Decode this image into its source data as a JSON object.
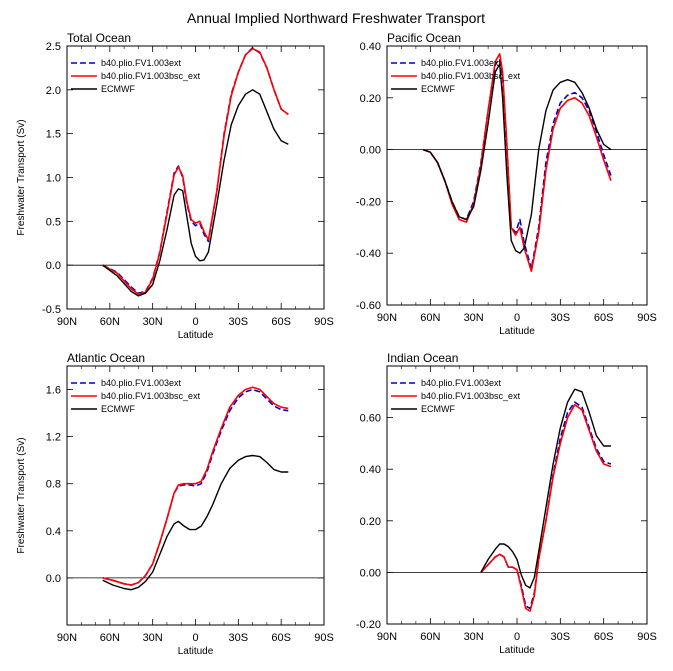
{
  "title": "Annual Implied Northward Freshwater Transport",
  "legend_labels": [
    "b40.plio.FV1.003ext",
    "b40.plio.FV1.003bsc_ext",
    "ECMWF"
  ],
  "colors": {
    "series1": "#0000cc",
    "series2": "#ff0000",
    "series3": "#000000",
    "zero_line": "#000000"
  },
  "chart_data": [
    {
      "type": "line",
      "title": "Total Ocean",
      "xlabel": "Latitude",
      "ylabel": "Freshwater Transport (Sv)",
      "xlim": [
        -90,
        90
      ],
      "x_ticks": [
        -90,
        -60,
        -30,
        0,
        30,
        60,
        90
      ],
      "x_tick_labels": [
        "90N",
        "60N",
        "30N",
        "0",
        "30S",
        "60S",
        "90S"
      ],
      "ylim": [
        -0.5,
        2.5
      ],
      "y_ticks": [
        -0.5,
        0.0,
        0.5,
        1.0,
        1.5,
        2.0,
        2.5
      ],
      "y_tick_labels": [
        "-0.5",
        "0.0",
        "0.5",
        "1.0",
        "1.5",
        "2.0",
        "2.5"
      ],
      "legend_position": "top-left",
      "series": [
        {
          "name": "b40.plio.FV1.003ext",
          "style": "dashed",
          "x": [
            -65,
            -55,
            -45,
            -40,
            -35,
            -30,
            -25,
            -20,
            -15,
            -12,
            -9,
            -6,
            -3,
            0,
            3,
            6,
            9,
            15,
            20,
            25,
            30,
            35,
            40,
            45,
            50,
            55,
            60,
            65
          ],
          "y": [
            0.0,
            -0.08,
            -0.25,
            -0.32,
            -0.3,
            -0.15,
            0.15,
            0.6,
            1.05,
            1.13,
            1.0,
            0.7,
            0.5,
            0.45,
            0.48,
            0.35,
            0.27,
            0.85,
            1.5,
            1.95,
            2.2,
            2.4,
            2.48,
            2.42,
            2.25,
            2.0,
            1.78,
            1.72
          ]
        },
        {
          "name": "b40.plio.FV1.003bsc_ext",
          "style": "solid",
          "x": [
            -65,
            -55,
            -45,
            -40,
            -35,
            -30,
            -25,
            -20,
            -15,
            -12,
            -9,
            -6,
            -3,
            0,
            3,
            6,
            9,
            15,
            20,
            25,
            30,
            35,
            40,
            45,
            50,
            55,
            60,
            65
          ],
          "y": [
            0.0,
            -0.09,
            -0.27,
            -0.33,
            -0.31,
            -0.16,
            0.14,
            0.58,
            1.03,
            1.12,
            1.02,
            0.72,
            0.52,
            0.48,
            0.5,
            0.38,
            0.29,
            0.85,
            1.48,
            1.93,
            2.2,
            2.4,
            2.47,
            2.43,
            2.25,
            2.0,
            1.78,
            1.72
          ]
        },
        {
          "name": "ECMWF",
          "style": "solid",
          "x": [
            -65,
            -55,
            -45,
            -40,
            -35,
            -30,
            -25,
            -20,
            -15,
            -12,
            -9,
            -6,
            -3,
            0,
            3,
            6,
            9,
            15,
            20,
            25,
            30,
            35,
            40,
            45,
            50,
            55,
            60,
            65
          ],
          "y": [
            0.0,
            -0.12,
            -0.3,
            -0.35,
            -0.32,
            -0.22,
            0.05,
            0.4,
            0.8,
            0.87,
            0.85,
            0.55,
            0.25,
            0.1,
            0.05,
            0.06,
            0.15,
            0.7,
            1.2,
            1.6,
            1.82,
            1.95,
            2.0,
            1.95,
            1.75,
            1.55,
            1.42,
            1.38
          ]
        }
      ]
    },
    {
      "type": "line",
      "title": "Pacific Ocean",
      "xlabel": "Latitude",
      "ylabel": "",
      "xlim": [
        -90,
        90
      ],
      "x_ticks": [
        -90,
        -60,
        -30,
        0,
        30,
        60,
        90
      ],
      "x_tick_labels": [
        "90N",
        "60N",
        "30N",
        "0",
        "30S",
        "60S",
        "90S"
      ],
      "ylim": [
        -0.6,
        0.4
      ],
      "y_ticks": [
        -0.6,
        -0.4,
        -0.2,
        0.0,
        0.2,
        0.4
      ],
      "y_tick_labels": [
        "-0.60",
        "-0.40",
        "-0.20",
        "0.00",
        "0.20",
        "0.40"
      ],
      "legend_position": "top-left",
      "series": [
        {
          "name": "b40.plio.FV1.003ext",
          "style": "dashed",
          "x": [
            -65,
            -60,
            -55,
            -50,
            -45,
            -40,
            -35,
            -30,
            -25,
            -20,
            -15,
            -12,
            -10,
            -7,
            -4,
            -1,
            2,
            5,
            10,
            15,
            20,
            25,
            30,
            35,
            40,
            45,
            50,
            55,
            60,
            65
          ],
          "y": [
            0.0,
            -0.01,
            -0.05,
            -0.12,
            -0.2,
            -0.26,
            -0.27,
            -0.2,
            -0.05,
            0.15,
            0.33,
            0.35,
            0.28,
            0.0,
            -0.3,
            -0.32,
            -0.27,
            -0.36,
            -0.46,
            -0.3,
            -0.05,
            0.1,
            0.18,
            0.21,
            0.22,
            0.2,
            0.15,
            0.07,
            -0.02,
            -0.1
          ]
        },
        {
          "name": "b40.plio.FV1.003bsc_ext",
          "style": "solid",
          "x": [
            -65,
            -60,
            -55,
            -50,
            -45,
            -40,
            -35,
            -30,
            -25,
            -20,
            -15,
            -12,
            -10,
            -7,
            -4,
            -1,
            2,
            5,
            10,
            15,
            20,
            25,
            30,
            35,
            40,
            45,
            50,
            55,
            60,
            65
          ],
          "y": [
            0.0,
            -0.01,
            -0.05,
            -0.12,
            -0.21,
            -0.27,
            -0.28,
            -0.21,
            -0.06,
            0.15,
            0.34,
            0.37,
            0.3,
            0.02,
            -0.3,
            -0.33,
            -0.3,
            -0.38,
            -0.47,
            -0.32,
            -0.08,
            0.08,
            0.16,
            0.19,
            0.2,
            0.18,
            0.13,
            0.05,
            -0.04,
            -0.12
          ]
        },
        {
          "name": "ECMWF",
          "style": "solid",
          "x": [
            -65,
            -60,
            -55,
            -50,
            -45,
            -40,
            -35,
            -30,
            -25,
            -20,
            -15,
            -12,
            -10,
            -7,
            -4,
            -1,
            2,
            5,
            10,
            15,
            20,
            25,
            30,
            35,
            40,
            45,
            50,
            55,
            60,
            65
          ],
          "y": [
            0.0,
            -0.01,
            -0.05,
            -0.12,
            -0.2,
            -0.26,
            -0.27,
            -0.22,
            -0.08,
            0.1,
            0.3,
            0.33,
            0.2,
            -0.1,
            -0.35,
            -0.39,
            -0.4,
            -0.38,
            -0.25,
            0.0,
            0.15,
            0.23,
            0.26,
            0.27,
            0.26,
            0.22,
            0.16,
            0.08,
            0.02,
            0.0
          ]
        }
      ]
    },
    {
      "type": "line",
      "title": "Atlantic Ocean",
      "xlabel": "Latitude",
      "ylabel": "Freshwater Transport (Sv)",
      "xlim": [
        -90,
        90
      ],
      "x_ticks": [
        -90,
        -60,
        -30,
        0,
        30,
        60,
        90
      ],
      "x_tick_labels": [
        "90N",
        "60N",
        "30N",
        "0",
        "30S",
        "60S",
        "90S"
      ],
      "ylim": [
        -0.4,
        1.8
      ],
      "y_ticks": [
        0.0,
        0.4,
        0.8,
        1.2,
        1.6
      ],
      "y_tick_labels": [
        "0.0",
        "0.4",
        "0.8",
        "1.2",
        "1.6"
      ],
      "legend_position": "top-left",
      "series": [
        {
          "name": "b40.plio.FV1.003ext",
          "style": "dashed",
          "x": [
            -65,
            -58,
            -50,
            -45,
            -40,
            -35,
            -30,
            -25,
            -20,
            -15,
            -12,
            -8,
            -4,
            0,
            4,
            8,
            12,
            18,
            24,
            30,
            35,
            40,
            45,
            50,
            55,
            60,
            65
          ],
          "y": [
            0.0,
            -0.02,
            -0.05,
            -0.06,
            -0.04,
            0.02,
            0.12,
            0.3,
            0.5,
            0.72,
            0.78,
            0.79,
            0.79,
            0.78,
            0.8,
            0.9,
            1.05,
            1.25,
            1.42,
            1.53,
            1.58,
            1.6,
            1.58,
            1.52,
            1.46,
            1.43,
            1.42
          ]
        },
        {
          "name": "b40.plio.FV1.003bsc_ext",
          "style": "solid",
          "x": [
            -65,
            -58,
            -50,
            -45,
            -40,
            -35,
            -30,
            -25,
            -20,
            -15,
            -12,
            -8,
            -4,
            0,
            4,
            8,
            12,
            18,
            24,
            30,
            35,
            40,
            45,
            50,
            55,
            60,
            65
          ],
          "y": [
            0.0,
            -0.02,
            -0.05,
            -0.06,
            -0.04,
            0.02,
            0.12,
            0.3,
            0.5,
            0.72,
            0.79,
            0.8,
            0.8,
            0.8,
            0.82,
            0.92,
            1.07,
            1.27,
            1.45,
            1.55,
            1.6,
            1.62,
            1.6,
            1.54,
            1.48,
            1.45,
            1.44
          ]
        },
        {
          "name": "ECMWF",
          "style": "solid",
          "x": [
            -65,
            -58,
            -50,
            -45,
            -40,
            -35,
            -30,
            -25,
            -20,
            -15,
            -12,
            -8,
            -4,
            0,
            4,
            8,
            12,
            18,
            24,
            30,
            35,
            40,
            45,
            50,
            55,
            60,
            65
          ],
          "y": [
            -0.02,
            -0.06,
            -0.09,
            -0.1,
            -0.08,
            -0.03,
            0.05,
            0.2,
            0.35,
            0.46,
            0.48,
            0.44,
            0.41,
            0.41,
            0.44,
            0.52,
            0.62,
            0.8,
            0.93,
            1.0,
            1.03,
            1.04,
            1.03,
            0.98,
            0.92,
            0.9,
            0.9
          ]
        }
      ]
    },
    {
      "type": "line",
      "title": "Indian Ocean",
      "xlabel": "Latitude",
      "ylabel": "",
      "xlim": [
        -90,
        90
      ],
      "x_ticks": [
        -90,
        -60,
        -30,
        0,
        30,
        60,
        90
      ],
      "x_tick_labels": [
        "90N",
        "60N",
        "30N",
        "0",
        "30S",
        "60S",
        "90S"
      ],
      "ylim": [
        -0.2,
        0.8
      ],
      "y_ticks": [
        -0.2,
        0.0,
        0.2,
        0.4,
        0.6
      ],
      "y_tick_labels": [
        "-0.20",
        "0.00",
        "0.20",
        "0.40",
        "0.60"
      ],
      "legend_position": "top-left",
      "series": [
        {
          "name": "b40.plio.FV1.003ext",
          "style": "dashed",
          "x": [
            -25,
            -20,
            -15,
            -12,
            -9,
            -6,
            -3,
            0,
            3,
            6,
            9,
            12,
            15,
            20,
            25,
            30,
            35,
            40,
            45,
            50,
            55,
            60,
            65
          ],
          "y": [
            0.0,
            0.03,
            0.06,
            0.07,
            0.06,
            0.02,
            0.02,
            0.01,
            -0.05,
            -0.13,
            -0.14,
            -0.08,
            0.05,
            0.2,
            0.38,
            0.52,
            0.62,
            0.66,
            0.64,
            0.56,
            0.48,
            0.43,
            0.42
          ]
        },
        {
          "name": "b40.plio.FV1.003bsc_ext",
          "style": "solid",
          "x": [
            -25,
            -20,
            -15,
            -12,
            -9,
            -6,
            -3,
            0,
            3,
            6,
            9,
            12,
            15,
            20,
            25,
            30,
            35,
            40,
            45,
            50,
            55,
            60,
            65
          ],
          "y": [
            0.0,
            0.03,
            0.06,
            0.07,
            0.06,
            0.02,
            0.02,
            0.01,
            -0.06,
            -0.14,
            -0.15,
            -0.09,
            0.05,
            0.2,
            0.37,
            0.5,
            0.6,
            0.65,
            0.63,
            0.55,
            0.47,
            0.42,
            0.41
          ]
        },
        {
          "name": "ECMWF",
          "style": "solid",
          "x": [
            -25,
            -20,
            -15,
            -12,
            -9,
            -6,
            -3,
            0,
            3,
            6,
            9,
            12,
            15,
            20,
            25,
            30,
            35,
            40,
            45,
            50,
            55,
            60,
            65
          ],
          "y": [
            0.0,
            0.05,
            0.09,
            0.11,
            0.11,
            0.1,
            0.08,
            0.05,
            -0.01,
            -0.05,
            -0.06,
            -0.02,
            0.08,
            0.25,
            0.42,
            0.56,
            0.66,
            0.71,
            0.7,
            0.62,
            0.53,
            0.49,
            0.49
          ]
        }
      ]
    }
  ]
}
